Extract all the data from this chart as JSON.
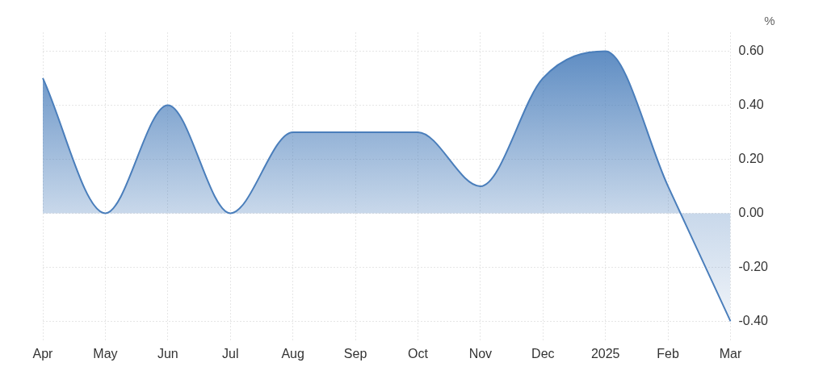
{
  "chart_data": {
    "type": "area",
    "ylabel": "%",
    "categories": [
      "Apr",
      "May",
      "Jun",
      "Jul",
      "Aug",
      "Sep",
      "Oct",
      "Nov",
      "Dec",
      "2025",
      "Feb",
      "Mar"
    ],
    "series": [
      {
        "color": "#4a7ebb",
        "values": [
          0.5,
          0.0,
          0.4,
          0.0,
          0.3,
          0.3,
          0.3,
          0.1,
          0.5,
          0.6,
          0.1,
          -0.4
        ]
      }
    ],
    "ylim": [
      -0.47,
      0.67
    ],
    "yticks": [
      {
        "value": 0.6,
        "label": "0.60"
      },
      {
        "value": 0.4,
        "label": "0.40"
      },
      {
        "value": 0.2,
        "label": "0.20"
      },
      {
        "value": 0,
        "label": "0.00"
      },
      {
        "value": -0.2,
        "label": "-0.20"
      },
      {
        "value": -0.4,
        "label": "-0.40"
      }
    ],
    "grid": true,
    "legend": false
  }
}
